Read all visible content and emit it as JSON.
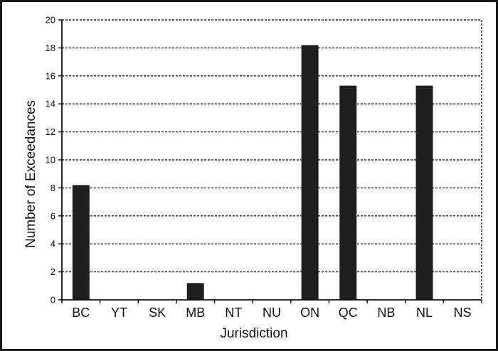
{
  "chart_data": {
    "type": "bar",
    "title": "",
    "xlabel": "Jurisdiction",
    "ylabel": "Number of Exceedances",
    "categories": [
      "BC",
      "YT",
      "SK",
      "MB",
      "NT",
      "NU",
      "ON",
      "QC",
      "NB",
      "NL",
      "NS"
    ],
    "values": [
      8.2,
      0,
      0,
      1.2,
      0,
      0,
      18.2,
      15.3,
      0,
      15.3,
      0
    ],
    "ylim": [
      0,
      20
    ],
    "yticks": [
      "0",
      "2",
      "4",
      "6",
      "8",
      "10",
      "12",
      "14",
      "16",
      "18",
      "20"
    ],
    "grid": "horizontal-dashed",
    "legend": "none",
    "colors": {
      "bar": "#1f1f1f",
      "axis": "#111111",
      "grid": "#222222"
    }
  }
}
